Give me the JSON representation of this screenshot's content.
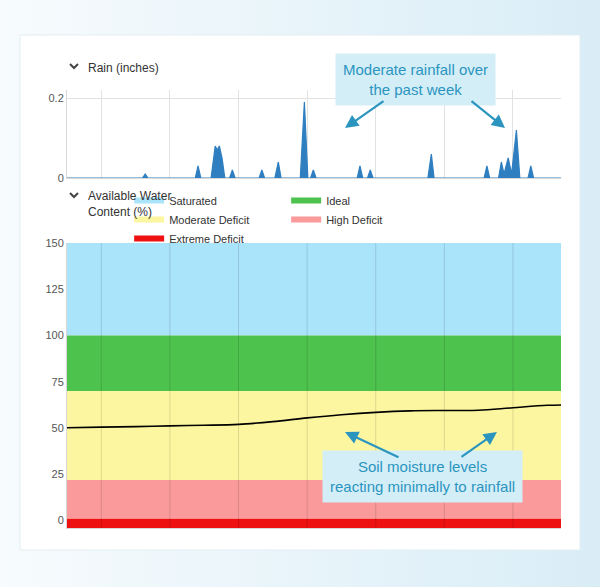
{
  "chart_data": [
    {
      "type": "area",
      "title": "Rain (inches)",
      "x": [
        0,
        1.1,
        1.14,
        1.18,
        1.87,
        1.91,
        1.95,
        2.1,
        2.16,
        2.19,
        2.22,
        2.26,
        2.3,
        2.37,
        2.41,
        2.45,
        2.8,
        2.84,
        2.88,
        3.03,
        3.08,
        3.12,
        3.4,
        3.46,
        3.51,
        3.55,
        3.59,
        3.63,
        4.23,
        4.27,
        4.31,
        4.38,
        4.42,
        4.46,
        5.26,
        5.31,
        5.35,
        6.08,
        6.12,
        6.16,
        6.29,
        6.33,
        6.37,
        6.43,
        6.48,
        6.55,
        6.6,
        6.72,
        6.76,
        6.8,
        7.2
      ],
      "values": [
        0,
        0,
        0.01,
        0,
        0,
        0.03,
        0,
        0,
        0.08,
        0.07,
        0.08,
        0.05,
        0,
        0,
        0.02,
        0,
        0,
        0.02,
        0,
        0,
        0.04,
        0,
        0,
        0.19,
        0,
        0,
        0.02,
        0,
        0,
        0.03,
        0,
        0,
        0.02,
        0,
        0,
        0.06,
        0,
        0,
        0.03,
        0,
        0,
        0.04,
        0.01,
        0.05,
        0.01,
        0.12,
        0,
        0,
        0.03,
        0,
        0
      ],
      "color": "#2f7fc0",
      "xlim": [
        0,
        7.2
      ],
      "xticks": [
        0.5,
        1.5,
        2.5,
        3.5,
        4.5,
        5.5,
        6.5
      ],
      "ylim": [
        0,
        0.22
      ],
      "yticks": [
        0,
        0.2
      ],
      "grid": true,
      "tick_labels": "y",
      "annotations": [
        {
          "text": [
            "Moderate rainfall over",
            "the past week"
          ]
        }
      ]
    },
    {
      "type": "line",
      "title": [
        "Available Water",
        "Content (%)"
      ],
      "x": [
        0,
        0.5,
        1,
        1.5,
        2,
        2.5,
        3,
        3.5,
        4,
        4.5,
        5,
        5.5,
        6,
        6.5,
        7,
        7.2
      ],
      "values": [
        50.2,
        50.5,
        50.8,
        51.2,
        51.5,
        52.0,
        53.5,
        55.5,
        57.2,
        58.5,
        59.3,
        59.5,
        59.6,
        61.0,
        62.3,
        62.5
      ],
      "color": "#000000",
      "bands": [
        {
          "name": "Saturated",
          "from": 100,
          "to": 150,
          "color": "#aae4fb"
        },
        {
          "name": "Ideal",
          "from": 70,
          "to": 100,
          "color": "#4dc24d"
        },
        {
          "name": "Moderate Deficit",
          "from": 22,
          "to": 70,
          "color": "#fdf6a0"
        },
        {
          "name": "High Deficit",
          "from": 1,
          "to": 22,
          "color": "#fa9a9a"
        },
        {
          "name": "Extreme Deficit",
          "from": -4,
          "to": 1,
          "color": "#ee1111"
        }
      ],
      "xlim": [
        0,
        7.2
      ],
      "xticks": [
        0.5,
        1.5,
        2.5,
        3.5,
        4.5,
        5.5,
        6.5
      ],
      "ylim": [
        -4,
        150
      ],
      "yticks": [
        0,
        25,
        50,
        75,
        100,
        125,
        150
      ],
      "grid": true,
      "tick_labels": "y",
      "legend": "top",
      "annotations": [
        {
          "text": [
            "Soil moisture levels",
            "reacting minimally to rainfall"
          ]
        }
      ]
    }
  ]
}
